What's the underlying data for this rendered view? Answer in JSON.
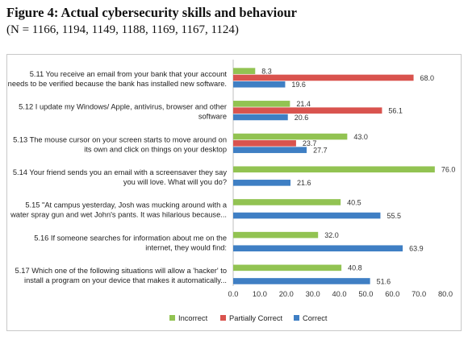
{
  "figure": {
    "title": "Figure 4: Actual cybersecurity skills and behaviour",
    "subtitle": "(N = 1166, 1194, 1149, 1188, 1169, 1167, 1124)"
  },
  "chart_data": {
    "type": "bar",
    "orientation": "horizontal",
    "categories": [
      [
        "5.11 You receive an email from your bank that your account",
        "needs to be verified because the bank has installed new software."
      ],
      [
        "5.12 I update my Windows/ Apple, antivirus, browser and other",
        "software"
      ],
      [
        "5.13 The mouse cursor on your screen starts to move around on",
        "its own and click on things on your desktop"
      ],
      [
        "5.14 Your friend sends you an email with a screensaver they say",
        "you will love. What will you do?"
      ],
      [
        "5.15 \"At campus yesterday, Josh was mucking around with a",
        "water spray gun and wet John's pants. It was hilarious because..."
      ],
      [
        "5.16 If someone searches for information about me on the",
        "internet, they would find:"
      ],
      [
        "5.17 Which one of the following situations will allow a 'hacker' to",
        "install a program on your device that makes it automatically..."
      ]
    ],
    "series": [
      {
        "name": "Incorrect",
        "color": "#92c352",
        "values": [
          8.3,
          21.4,
          43.0,
          76.0,
          40.5,
          32.0,
          40.8
        ]
      },
      {
        "name": "Partially Correct",
        "color": "#d9534e",
        "values": [
          68.0,
          56.1,
          23.7,
          null,
          null,
          null,
          null
        ]
      },
      {
        "name": "Correct",
        "color": "#3f7fc4",
        "values": [
          19.6,
          20.6,
          27.7,
          21.6,
          55.5,
          63.9,
          51.6
        ]
      }
    ],
    "xlim": [
      0,
      80
    ],
    "xticks": [
      "0.0",
      "10.0",
      "20.0",
      "30.0",
      "40.0",
      "50.0",
      "60.0",
      "70.0",
      "80.0"
    ],
    "value_format_decimals": 1,
    "grid": false,
    "legend_position": "bottom"
  }
}
